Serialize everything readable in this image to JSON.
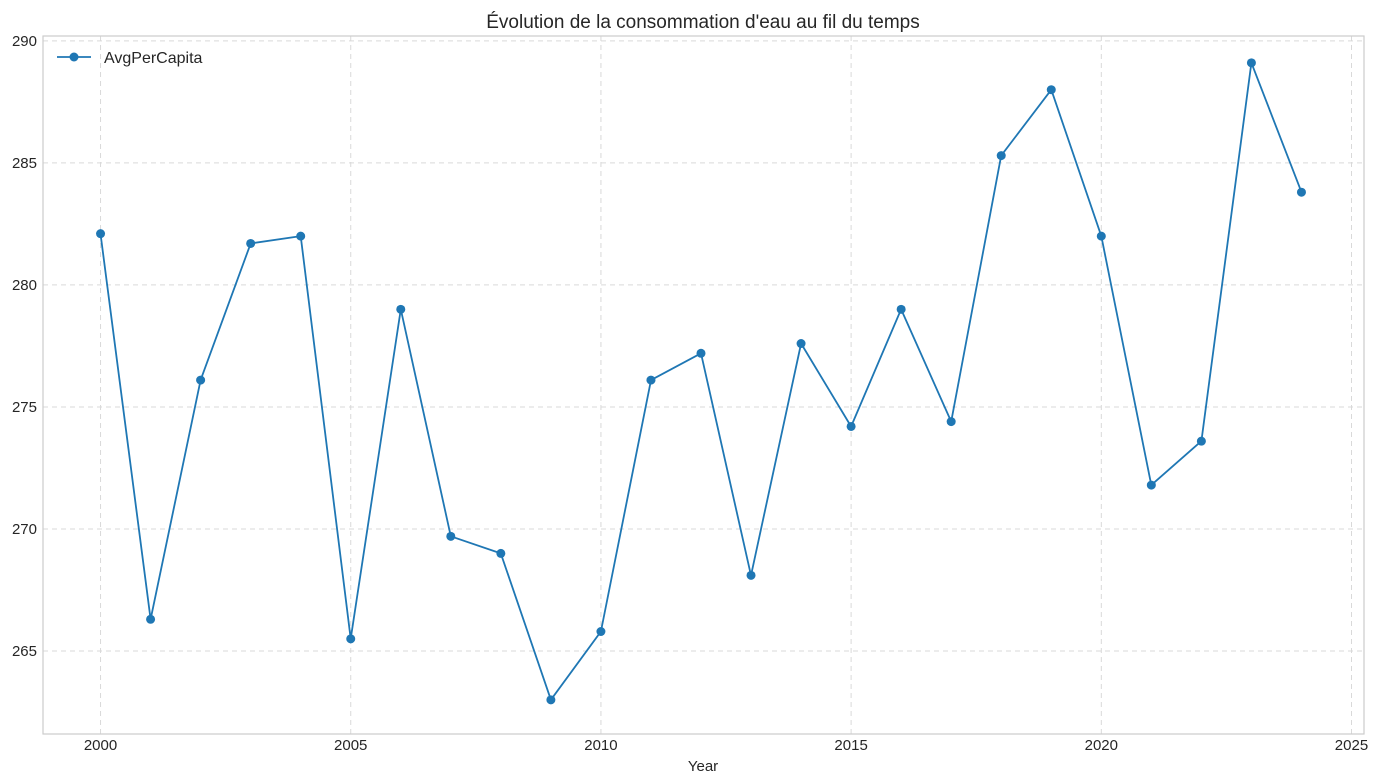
{
  "chart_data": {
    "type": "line",
    "title": "Évolution de la consommation d'eau au fil du temps",
    "xlabel": "Year",
    "ylabel": "",
    "xlim": [
      1998.85,
      2025.25
    ],
    "ylim": [
      261.6,
      290.2
    ],
    "x_ticks": [
      2000,
      2005,
      2010,
      2015,
      2020,
      2025
    ],
    "y_ticks": [
      265,
      270,
      275,
      280,
      285,
      290
    ],
    "grid": true,
    "legend_position": "top-left",
    "series": [
      {
        "name": "AvgPerCapita",
        "color": "#1f77b4",
        "marker": "circle",
        "x": [
          2000,
          2001,
          2002,
          2003,
          2004,
          2005,
          2006,
          2007,
          2008,
          2009,
          2010,
          2011,
          2012,
          2013,
          2014,
          2015,
          2016,
          2017,
          2018,
          2019,
          2020,
          2021,
          2022,
          2023,
          2024
        ],
        "values": [
          282.1,
          266.3,
          276.1,
          281.7,
          282.0,
          265.5,
          279.0,
          269.7,
          269.0,
          263.0,
          265.8,
          276.1,
          277.2,
          268.1,
          277.6,
          274.2,
          279.0,
          274.4,
          285.3,
          288.0,
          282.0,
          271.8,
          273.6,
          289.1,
          283.8
        ]
      }
    ]
  }
}
